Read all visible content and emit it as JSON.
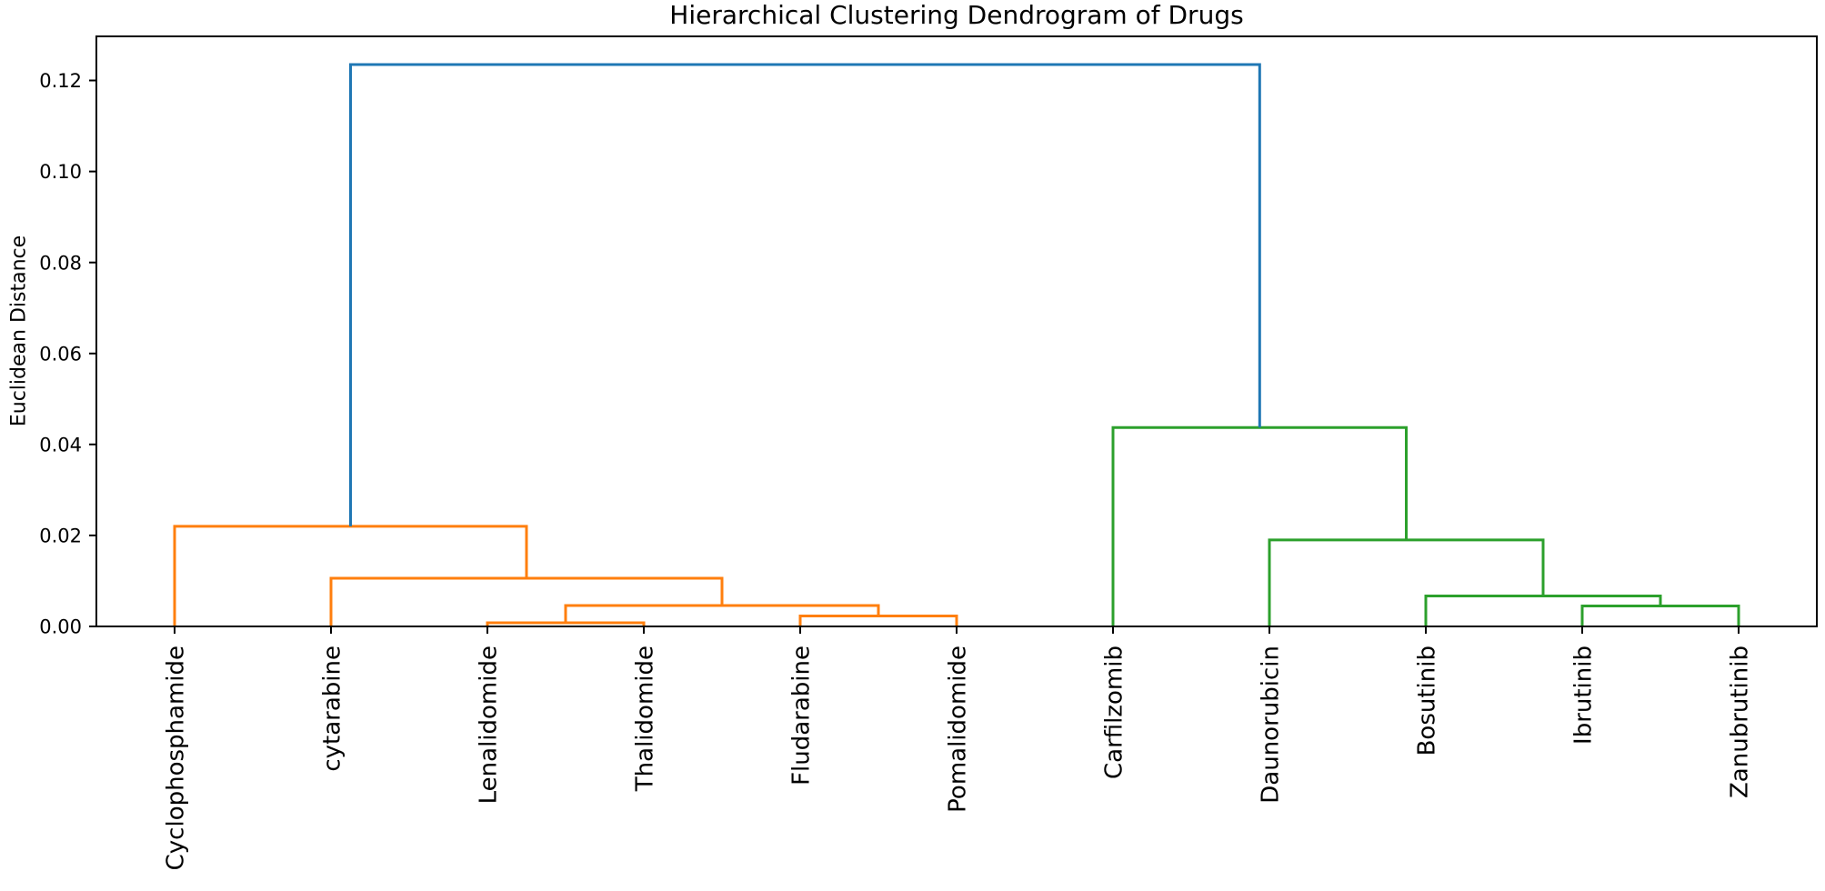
{
  "chart_data": {
    "type": "dendrogram",
    "title": "Hierarchical Clustering Dendrogram of Drugs",
    "ylabel": "Euclidean Distance",
    "xlabel": "",
    "grid": false,
    "legend": false,
    "leaves": [
      "Cyclophosphamide",
      "cytarabine",
      "Lenalidomide",
      "Thalidomide",
      "Fludarabine",
      "Pomalidomide",
      "Carfilzomib",
      "Daunorubicin",
      "Bosutinib",
      "Ibrutinib",
      "Zanubrutinib"
    ],
    "yticks": [
      0.0,
      0.02,
      0.04,
      0.06,
      0.08,
      0.1,
      0.12
    ],
    "ylim": [
      0,
      0.1297
    ],
    "axis_color": "#000000",
    "link_colors": {
      "left_cluster": "#ff7f0e",
      "right_cluster": "#2ca02c",
      "root": "#1f77b4"
    },
    "merges": [
      {
        "id": "LT",
        "children": [
          "Lenalidomide",
          "Thalidomide"
        ],
        "height": 0.0008,
        "color": "#ff7f0e"
      },
      {
        "id": "FP",
        "children": [
          "Fludarabine",
          "Pomalidomide"
        ],
        "height": 0.0023,
        "color": "#ff7f0e"
      },
      {
        "id": "LTFP",
        "children": [
          "LT",
          "FP"
        ],
        "height": 0.0046,
        "color": "#ff7f0e"
      },
      {
        "id": "CYT",
        "children": [
          "cytarabine",
          "LTFP"
        ],
        "height": 0.0106,
        "color": "#ff7f0e"
      },
      {
        "id": "ORANGE",
        "children": [
          "Cyclophosphamide",
          "CYT"
        ],
        "height": 0.022,
        "color": "#ff7f0e"
      },
      {
        "id": "IZ",
        "children": [
          "Ibrutinib",
          "Zanubrutinib"
        ],
        "height": 0.0045,
        "color": "#2ca02c"
      },
      {
        "id": "BIZ",
        "children": [
          "Bosutinib",
          "IZ"
        ],
        "height": 0.0067,
        "color": "#2ca02c"
      },
      {
        "id": "DBIZ",
        "children": [
          "Daunorubicin",
          "BIZ"
        ],
        "height": 0.019,
        "color": "#2ca02c"
      },
      {
        "id": "GREEN",
        "children": [
          "Carfilzomib",
          "DBIZ"
        ],
        "height": 0.0437,
        "color": "#2ca02c"
      },
      {
        "id": "ROOT",
        "children": [
          "ORANGE",
          "GREEN"
        ],
        "height": 0.1235,
        "color": "#1f77b4"
      }
    ]
  }
}
